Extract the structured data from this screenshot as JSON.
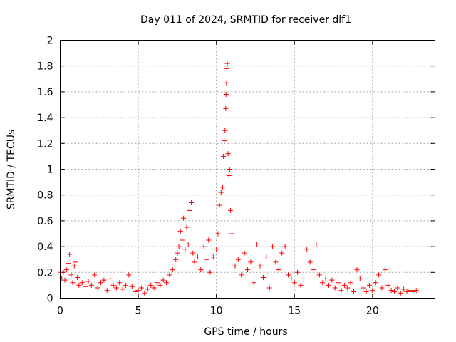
{
  "chart_data": {
    "type": "scatter",
    "title": "Day 011 of 2024, SRMTID for receiver dlf1",
    "xlabel": "GPS time / hours",
    "ylabel": "SRMTID / TECUs",
    "xlim": [
      0,
      24
    ],
    "ylim": [
      0,
      2
    ],
    "xticks": [
      0,
      5,
      10,
      15,
      20
    ],
    "yticks": [
      0,
      0.2,
      0.4,
      0.6,
      0.8,
      1,
      1.2,
      1.4,
      1.6,
      1.8,
      2
    ],
    "xtick_labels": [
      "0",
      "5",
      "10",
      "15",
      "20"
    ],
    "ytick_labels": [
      "0",
      "0.2",
      "0.4",
      "0.6",
      "0.8",
      "1",
      "1.2",
      "1.4",
      "1.6",
      "1.8",
      "2"
    ],
    "grid": true,
    "marker": "+",
    "color": "#ff0000",
    "series": [
      {
        "name": "SRMTID",
        "points": [
          [
            0.0,
            0.2
          ],
          [
            0.1,
            0.15
          ],
          [
            0.2,
            0.2
          ],
          [
            0.3,
            0.14
          ],
          [
            0.4,
            0.22
          ],
          [
            0.5,
            0.27
          ],
          [
            0.6,
            0.34
          ],
          [
            0.7,
            0.18
          ],
          [
            0.8,
            0.12
          ],
          [
            0.9,
            0.25
          ],
          [
            1.0,
            0.28
          ],
          [
            1.1,
            0.16
          ],
          [
            1.2,
            0.1
          ],
          [
            1.4,
            0.12
          ],
          [
            1.6,
            0.09
          ],
          [
            1.8,
            0.13
          ],
          [
            2.0,
            0.1
          ],
          [
            2.2,
            0.18
          ],
          [
            2.4,
            0.08
          ],
          [
            2.6,
            0.12
          ],
          [
            2.8,
            0.14
          ],
          [
            3.0,
            0.06
          ],
          [
            3.2,
            0.15
          ],
          [
            3.4,
            0.1
          ],
          [
            3.6,
            0.08
          ],
          [
            3.8,
            0.12
          ],
          [
            4.0,
            0.07
          ],
          [
            4.2,
            0.1
          ],
          [
            4.4,
            0.18
          ],
          [
            4.6,
            0.09
          ],
          [
            4.8,
            0.05
          ],
          [
            5.0,
            0.06
          ],
          [
            5.2,
            0.08
          ],
          [
            5.4,
            0.04
          ],
          [
            5.6,
            0.07
          ],
          [
            5.8,
            0.1
          ],
          [
            6.0,
            0.08
          ],
          [
            6.2,
            0.12
          ],
          [
            6.4,
            0.1
          ],
          [
            6.6,
            0.14
          ],
          [
            6.8,
            0.12
          ],
          [
            7.0,
            0.18
          ],
          [
            7.2,
            0.22
          ],
          [
            7.4,
            0.3
          ],
          [
            7.5,
            0.35
          ],
          [
            7.6,
            0.4
          ],
          [
            7.7,
            0.52
          ],
          [
            7.8,
            0.45
          ],
          [
            7.9,
            0.62
          ],
          [
            8.0,
            0.38
          ],
          [
            8.1,
            0.55
          ],
          [
            8.2,
            0.42
          ],
          [
            8.3,
            0.68
          ],
          [
            8.4,
            0.74
          ],
          [
            8.5,
            0.35
          ],
          [
            8.6,
            0.28
          ],
          [
            8.8,
            0.32
          ],
          [
            9.0,
            0.22
          ],
          [
            9.2,
            0.4
          ],
          [
            9.4,
            0.3
          ],
          [
            9.5,
            0.45
          ],
          [
            9.6,
            0.2
          ],
          [
            9.8,
            0.32
          ],
          [
            10.0,
            0.38
          ],
          [
            10.1,
            0.5
          ],
          [
            10.2,
            0.72
          ],
          [
            10.3,
            0.82
          ],
          [
            10.4,
            0.86
          ],
          [
            10.45,
            1.1
          ],
          [
            10.5,
            1.22
          ],
          [
            10.55,
            1.3
          ],
          [
            10.6,
            1.47
          ],
          [
            10.62,
            1.58
          ],
          [
            10.65,
            1.67
          ],
          [
            10.68,
            1.78
          ],
          [
            10.7,
            1.82
          ],
          [
            10.75,
            1.12
          ],
          [
            10.8,
            0.95
          ],
          [
            10.85,
            1.0
          ],
          [
            10.9,
            0.68
          ],
          [
            11.0,
            0.5
          ],
          [
            11.2,
            0.25
          ],
          [
            11.4,
            0.3
          ],
          [
            11.6,
            0.18
          ],
          [
            11.8,
            0.35
          ],
          [
            12.0,
            0.22
          ],
          [
            12.2,
            0.28
          ],
          [
            12.4,
            0.12
          ],
          [
            12.6,
            0.42
          ],
          [
            12.8,
            0.25
          ],
          [
            13.0,
            0.16
          ],
          [
            13.2,
            0.32
          ],
          [
            13.4,
            0.08
          ],
          [
            13.6,
            0.4
          ],
          [
            13.8,
            0.28
          ],
          [
            14.0,
            0.22
          ],
          [
            14.2,
            0.35
          ],
          [
            14.4,
            0.4
          ],
          [
            14.6,
            0.18
          ],
          [
            14.8,
            0.15
          ],
          [
            15.0,
            0.12
          ],
          [
            15.2,
            0.2
          ],
          [
            15.4,
            0.1
          ],
          [
            15.6,
            0.15
          ],
          [
            15.8,
            0.38
          ],
          [
            16.0,
            0.28
          ],
          [
            16.2,
            0.22
          ],
          [
            16.4,
            0.42
          ],
          [
            16.6,
            0.18
          ],
          [
            16.8,
            0.12
          ],
          [
            17.0,
            0.15
          ],
          [
            17.2,
            0.1
          ],
          [
            17.4,
            0.14
          ],
          [
            17.6,
            0.08
          ],
          [
            17.8,
            0.12
          ],
          [
            18.0,
            0.06
          ],
          [
            18.2,
            0.1
          ],
          [
            18.4,
            0.08
          ],
          [
            18.6,
            0.12
          ],
          [
            18.8,
            0.05
          ],
          [
            19.0,
            0.22
          ],
          [
            19.2,
            0.15
          ],
          [
            19.4,
            0.08
          ],
          [
            19.6,
            0.05
          ],
          [
            19.8,
            0.1
          ],
          [
            20.0,
            0.06
          ],
          [
            20.2,
            0.12
          ],
          [
            20.4,
            0.18
          ],
          [
            20.6,
            0.08
          ],
          [
            20.8,
            0.22
          ],
          [
            21.0,
            0.1
          ],
          [
            21.2,
            0.06
          ],
          [
            21.4,
            0.05
          ],
          [
            21.6,
            0.08
          ],
          [
            21.8,
            0.04
          ],
          [
            22.0,
            0.07
          ],
          [
            22.2,
            0.05
          ],
          [
            22.4,
            0.06
          ],
          [
            22.6,
            0.05
          ],
          [
            22.8,
            0.06
          ]
        ]
      }
    ]
  }
}
